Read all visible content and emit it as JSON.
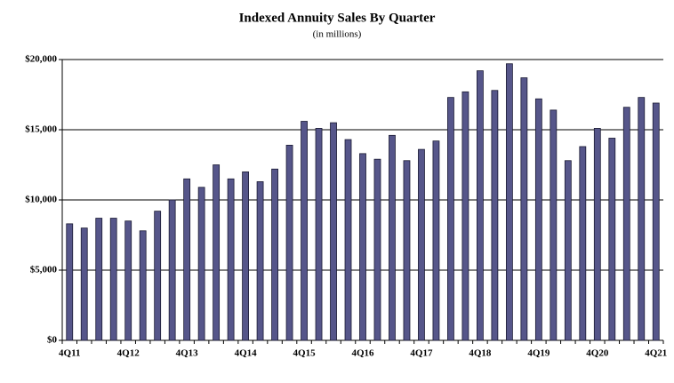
{
  "chart_data": {
    "type": "bar",
    "title": "Indexed Annuity Sales By Quarter",
    "subtitle": "(in millions)",
    "categories": [
      "4Q11",
      null,
      null,
      null,
      "4Q12",
      null,
      null,
      null,
      "4Q13",
      null,
      null,
      null,
      "4Q14",
      null,
      null,
      null,
      "4Q15",
      null,
      null,
      null,
      "4Q16",
      null,
      null,
      null,
      "4Q17",
      null,
      null,
      null,
      "4Q18",
      null,
      null,
      null,
      "4Q19",
      null,
      null,
      null,
      "4Q20",
      null,
      null,
      null,
      "4Q21"
    ],
    "values": [
      8300,
      8000,
      8700,
      8700,
      8500,
      7800,
      9200,
      10000,
      11500,
      10900,
      12500,
      11500,
      12000,
      11300,
      12200,
      13900,
      15600,
      15100,
      15500,
      14300,
      13300,
      12900,
      14600,
      12800,
      13600,
      14200,
      17300,
      17700,
      19200,
      17800,
      19700,
      18700,
      17200,
      16400,
      12800,
      13800,
      15100,
      14400,
      16600,
      17300,
      16900
    ],
    "color": "#56568a",
    "ylim": [
      0,
      20000
    ],
    "yticks": [
      {
        "value": 0,
        "label": "$0"
      },
      {
        "value": 5000,
        "label": "$5,000"
      },
      {
        "value": 10000,
        "label": "$10,000"
      },
      {
        "value": 15000,
        "label": "$15,000"
      },
      {
        "value": 20000,
        "label": "$20,000"
      }
    ],
    "grid": true
  }
}
